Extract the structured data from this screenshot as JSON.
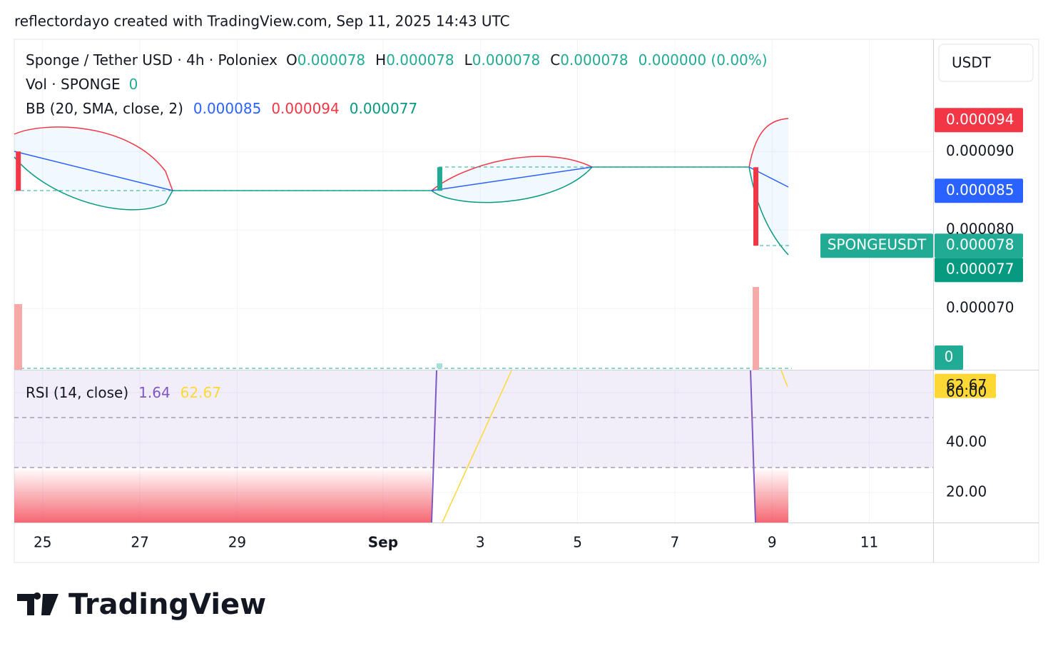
{
  "header": "reflectordayo created with TradingView.com, Sep 11, 2025 14:43 UTC",
  "currency": "USDT",
  "logo": "TradingView",
  "chart_data": {
    "type": "candlestick",
    "legend": {
      "symbol": "Sponge / Tether USD · 4h · Poloniex",
      "o_label": "O",
      "open": "0.000078",
      "h_label": "H",
      "high": "0.000078",
      "l_label": "L",
      "low": "0.000078",
      "c_label": "C",
      "close": "0.000078",
      "change": "0.000000 (0.00%)",
      "volume_label": "Vol · SPONGE",
      "volume": "0",
      "bb_label": "BB (20, SMA, close, 2)",
      "bb_basis": "0.000085",
      "bb_upper": "0.000094",
      "bb_lower": "0.000077"
    },
    "x": [
      "2025-08-24T12:00",
      "2025-09-02T04:00",
      "2025-09-08T16:00"
    ],
    "open": [
      9e-05,
      8.5e-05,
      8.8e-05
    ],
    "high": [
      9e-05,
      8.8e-05,
      8.8e-05
    ],
    "low": [
      8.5e-05,
      8.5e-05,
      7.8e-05
    ],
    "close": [
      8.5e-05,
      8.8e-05,
      7.8e-05
    ],
    "up_color": "#22ab94",
    "down_color": "#f23645",
    "xlim": [
      "2025-08-24T10:00",
      "2025-09-12T07:30"
    ],
    "xticks": [
      {
        "value": "2025-08-25",
        "label": "25"
      },
      {
        "value": "2025-08-27",
        "label": "27"
      },
      {
        "value": "2025-08-29",
        "label": "29"
      },
      {
        "value": "2025-09-01",
        "label": "Sep"
      },
      {
        "value": "2025-09-03",
        "label": "3"
      },
      {
        "value": "2025-09-05",
        "label": "5"
      },
      {
        "value": "2025-09-07",
        "label": "7"
      },
      {
        "value": "2025-09-09",
        "label": "9"
      },
      {
        "value": "2025-09-11",
        "label": "11"
      }
    ],
    "ylim": [
      6.22e-05,
      0.0001043
    ],
    "yticks": [
      {
        "value": 7e-05,
        "label": "0.000070"
      },
      {
        "value": 8e-05,
        "label": "0.000080"
      },
      {
        "value": 9e-05,
        "label": "0.000090"
      }
    ],
    "grid": true,
    "price_tags": [
      {
        "value": 9.4e-05,
        "label": "0.000094",
        "color": "#f23645"
      },
      {
        "value": 8.5e-05,
        "label": "0.000085",
        "color": "#2962ff"
      },
      {
        "value": 7.8e-05,
        "label": "0.000078",
        "color": "#22ab94",
        "name": "SPONGEUSDT"
      },
      {
        "value": 7.7e-05,
        "label": "0.000077",
        "color": "#089981"
      }
    ],
    "volume_tag": {
      "label": "0",
      "color": "#22ab94"
    },
    "rsi": {
      "title": "RSI (14, close)",
      "value": "1.64",
      "ma": {
        "value": 62.67,
        "label": "62.67"
      },
      "ylim": [
        8,
        68.86
      ],
      "yticks": [
        {
          "value": 20,
          "label": "20.00"
        },
        {
          "value": 40,
          "label": "40.00"
        },
        {
          "value": 60,
          "label": "60.00"
        }
      ],
      "bands": [
        30,
        50
      ]
    }
  }
}
